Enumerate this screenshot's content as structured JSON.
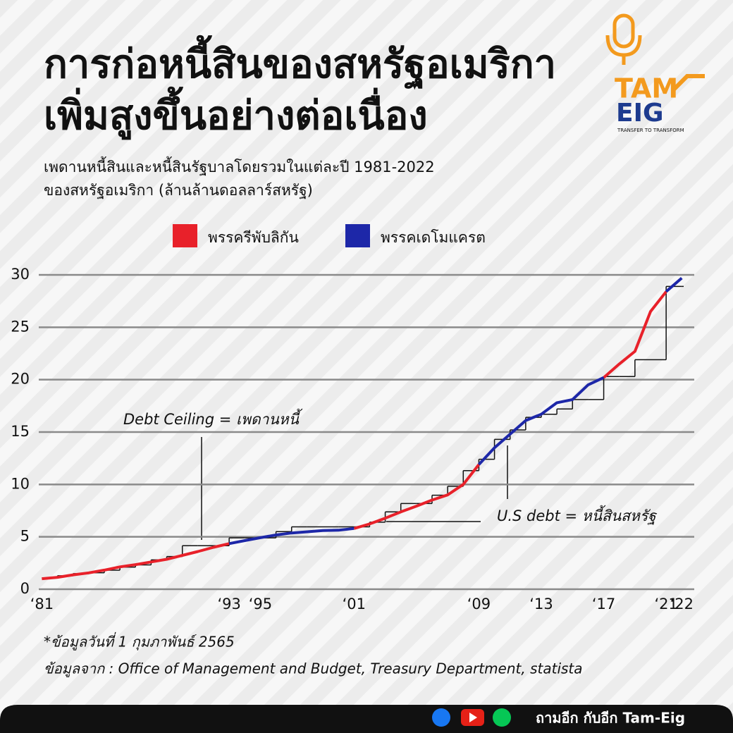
{
  "chart_data": {
    "type": "line",
    "title": [
      "การก่อหนี้สินของสหรัฐอเมริกา",
      "เพิ่มสูงขึ้นอย่างต่อเนื่อง"
    ],
    "subtitle": [
      "เพดานหนี้สินและหนี้สินรัฐบาลโดยรวมในแต่ละปี 1981-2022",
      "ของสหรัฐอเมริกา (ล้านล้านดอลลาร์สหรัฐ)"
    ],
    "annotations": [
      "Debt Ceiling = เพดานหนี้",
      "U.S debt = หนี้สินสหรัฐ"
    ],
    "notes": [
      "*ข้อมูลวันที่ 1 กุมภาพันธ์ 2565",
      "ข้อมูลจาก : Office of Management and Budget, Treasury Department, statista"
    ],
    "x": [
      1981,
      1982,
      1983,
      1984,
      1985,
      1986,
      1987,
      1988,
      1989,
      1990,
      1991,
      1992,
      1993,
      1994,
      1995,
      1996,
      1997,
      1998,
      1999,
      2000,
      2001,
      2002,
      2003,
      2004,
      2005,
      2006,
      2007,
      2008,
      2009,
      2010,
      2011,
      2012,
      2013,
      2014,
      2015,
      2016,
      2017,
      2018,
      2019,
      2020,
      2021,
      2022
    ],
    "series": [
      {
        "name": "พรรครีพับลิกัน",
        "color": "#e8212a",
        "values": [
          1.0,
          1.14,
          1.37,
          1.56,
          1.82,
          2.13,
          2.35,
          2.6,
          2.86,
          3.23,
          3.6,
          4.0,
          4.35,
          null,
          null,
          null,
          null,
          null,
          null,
          null,
          5.8,
          6.23,
          6.78,
          7.38,
          7.93,
          8.51,
          9.0,
          10.0,
          11.9,
          null,
          null,
          null,
          null,
          null,
          null,
          null,
          20.2,
          21.5,
          22.7,
          26.5,
          28.4,
          null
        ]
      },
      {
        "name": "พรรคเดโมแครต",
        "color": "#1d27a8",
        "values": [
          null,
          null,
          null,
          null,
          null,
          null,
          null,
          null,
          null,
          null,
          null,
          null,
          4.35,
          4.64,
          4.92,
          5.18,
          5.37,
          5.48,
          5.6,
          5.63,
          5.8,
          null,
          null,
          null,
          null,
          null,
          null,
          null,
          11.9,
          13.5,
          14.8,
          16.1,
          16.7,
          17.8,
          18.1,
          19.5,
          20.2,
          null,
          null,
          null,
          28.4,
          29.7
        ]
      }
    ],
    "step_series": {
      "color": "#111111",
      "values": [
        1.08,
        1.29,
        1.49,
        1.57,
        1.82,
        2.11,
        2.32,
        2.8,
        3.12,
        4.15,
        4.15,
        4.15,
        4.9,
        4.9,
        4.9,
        5.5,
        5.95,
        5.95,
        5.95,
        5.95,
        5.95,
        6.4,
        7.38,
        8.18,
        8.18,
        8.97,
        9.82,
        11.32,
        12.4,
        14.3,
        15.2,
        16.4,
        16.7,
        17.2,
        18.1,
        18.1,
        20.3,
        20.3,
        21.9,
        21.9,
        28.9,
        28.9
      ]
    },
    "xlim": [
      1980.8,
      2022.8
    ],
    "xticks": [
      {
        "value": 1981,
        "label": "‘81"
      },
      {
        "value": 1993,
        "label": "‘93"
      },
      {
        "value": 1995,
        "label": "‘95"
      },
      {
        "value": 2001,
        "label": "‘01"
      },
      {
        "value": 2009,
        "label": "‘09"
      },
      {
        "value": 2013,
        "label": "‘13"
      },
      {
        "value": 2017,
        "label": "‘17"
      },
      {
        "value": 2021,
        "label": "‘21"
      },
      {
        "value": 2022,
        "label": "‘22"
      }
    ],
    "ylim": [
      0,
      30
    ],
    "yticks": [
      0,
      5,
      10,
      15,
      20,
      25,
      30
    ],
    "grid": true
  },
  "logo": {
    "top": "TAM",
    "bottom": "EIG",
    "tagline": "TRANSFER TO TRANSFORM"
  },
  "footer": {
    "text": "ถามอีก กับอีก Tam-Eig"
  }
}
